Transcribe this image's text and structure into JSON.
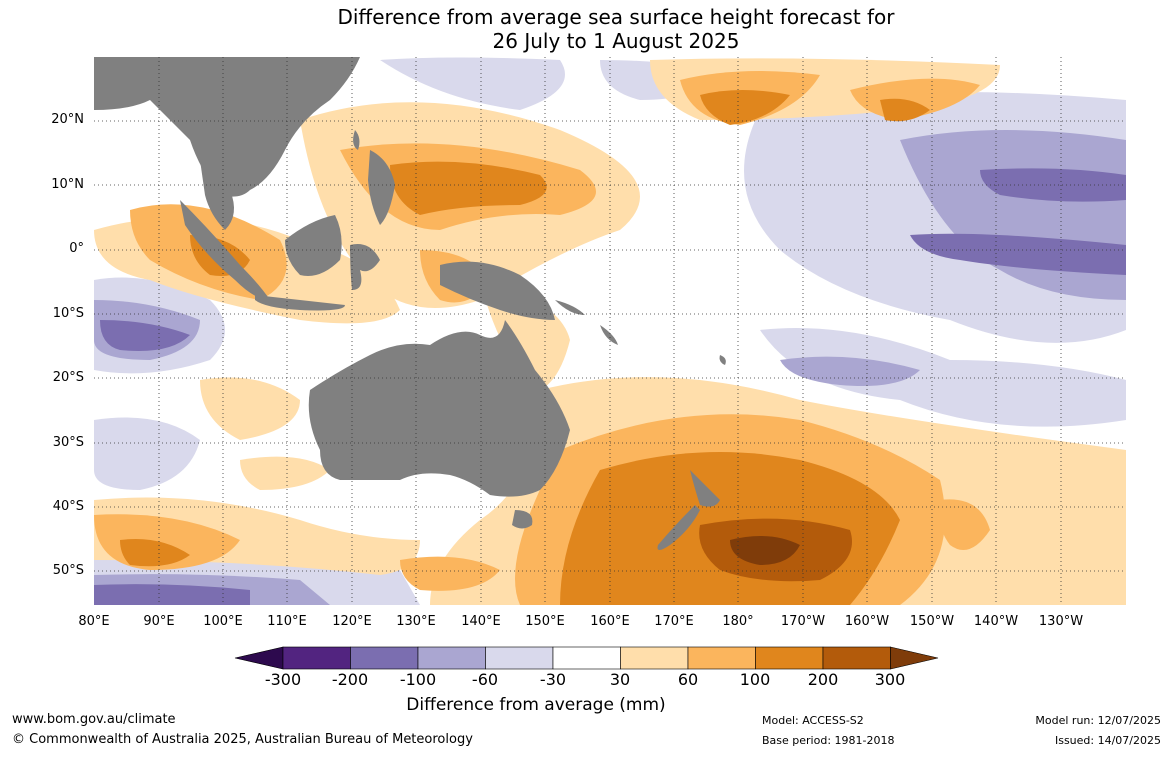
{
  "title": {
    "line1": "Difference from average sea surface height forecast for",
    "line2": "26 July to 1 August 2025"
  },
  "map": {
    "lat_labels": [
      "20°N",
      "10°N",
      "0°",
      "10°S",
      "20°S",
      "30°S",
      "40°S",
      "50°S"
    ],
    "lon_labels": [
      "80°E",
      "90°E",
      "100°E",
      "110°E",
      "120°E",
      "130°E",
      "140°E",
      "150°E",
      "160°E",
      "170°E",
      "180°",
      "170°W",
      "160°W",
      "150°W",
      "140°W",
      "130°W"
    ],
    "land_color": "#808080",
    "ocean_color": "#ffffff"
  },
  "colorbar": {
    "labels": [
      "-300",
      "-200",
      "-100",
      "-60",
      "-30",
      "30",
      "60",
      "100",
      "200",
      "300"
    ],
    "colors": [
      "#2d0a4e",
      "#522480",
      "#7b6eb0",
      "#aaa6d1",
      "#d9d9ec",
      "#ffffff",
      "#ffdeab",
      "#fbb55d",
      "#e0861d",
      "#b35b0b",
      "#7f3c0a"
    ],
    "title": "Difference from average (mm)"
  },
  "footer": {
    "website": "www.bom.gov.au/climate",
    "copyright": "© Commonwealth of Australia 2025, Australian Bureau of Meteorology",
    "model": "Model: ACCESS-S2",
    "base_period": "Base period: 1981-2018",
    "model_run": "Model run: 12/07/2025",
    "issued": "Issued: 14/07/2025"
  }
}
